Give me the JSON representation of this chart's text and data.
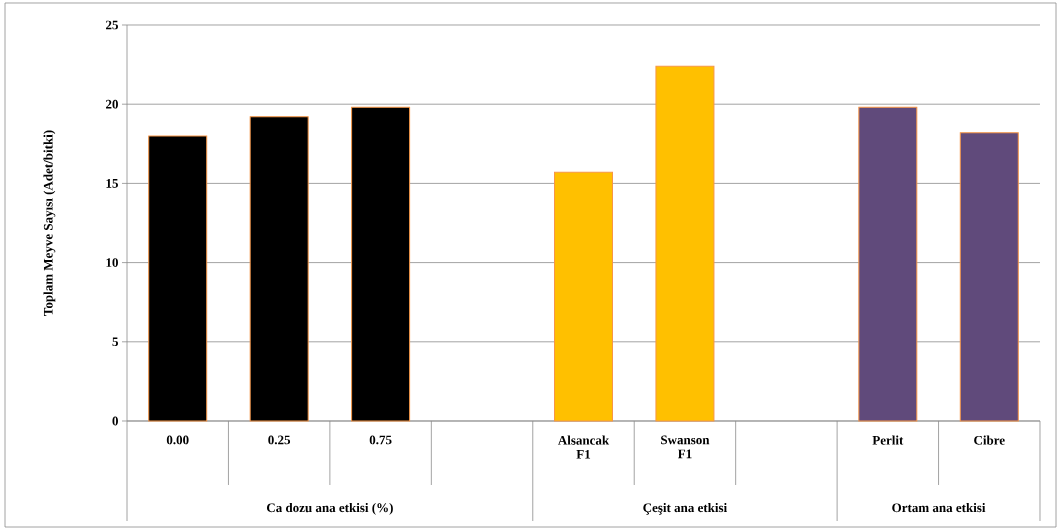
{
  "chart_data": {
    "type": "bar",
    "ylabel": "Toplam Meyve Sayısı (Adet/bitki)",
    "categories": [
      "0.00",
      "0.25",
      "0.75",
      null,
      "Alsancak F1",
      "Swanson F1",
      null,
      "Perlit",
      "Cibre"
    ],
    "values": [
      18.0,
      19.2,
      19.8,
      null,
      15.7,
      22.4,
      null,
      19.8,
      18.2
    ],
    "colors": [
      "#000000",
      "#000000",
      "#000000",
      "#000000",
      "#ffc000",
      "#ffc000",
      "#ffc000",
      "#604a7b",
      "#604a7b"
    ],
    "ylim": [
      0,
      25
    ],
    "yticks": [
      0,
      5,
      10,
      15,
      20,
      25
    ],
    "grid": "y",
    "annotations": [
      "Ca dozu ana etkisi (%)",
      "Çeşit ana etkisi",
      "Ortam ana etkisi"
    ]
  }
}
